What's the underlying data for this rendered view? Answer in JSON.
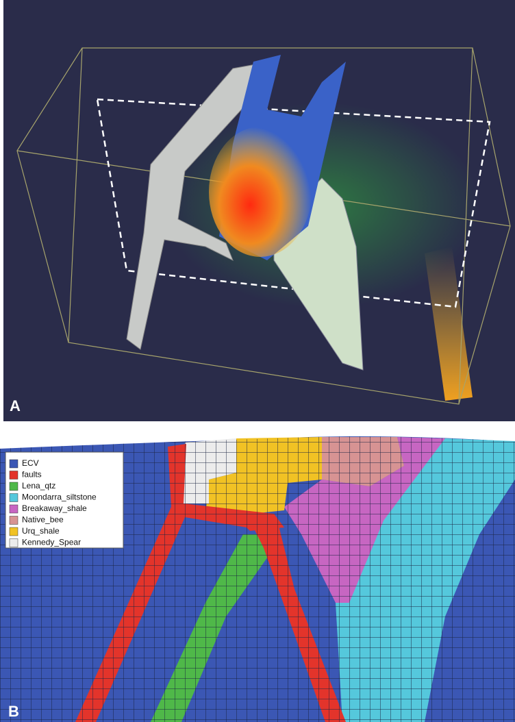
{
  "panel_a": {
    "label": "A"
  },
  "panel_b": {
    "label": "B",
    "legend": [
      {
        "name": "ECV",
        "color": "#3b57b4"
      },
      {
        "name": "faults",
        "color": "#e3342b"
      },
      {
        "name": "Lena_qtz",
        "color": "#4fb849"
      },
      {
        "name": "Moondarra_siltstone",
        "color": "#55c8dc"
      },
      {
        "name": "Breakaway_shale",
        "color": "#c766c2"
      },
      {
        "name": "Native_bee",
        "color": "#d79393"
      },
      {
        "name": "Urq_shale",
        "color": "#f1c224"
      },
      {
        "name": "Kennedy_Spear",
        "color": "#ececec"
      }
    ]
  }
}
